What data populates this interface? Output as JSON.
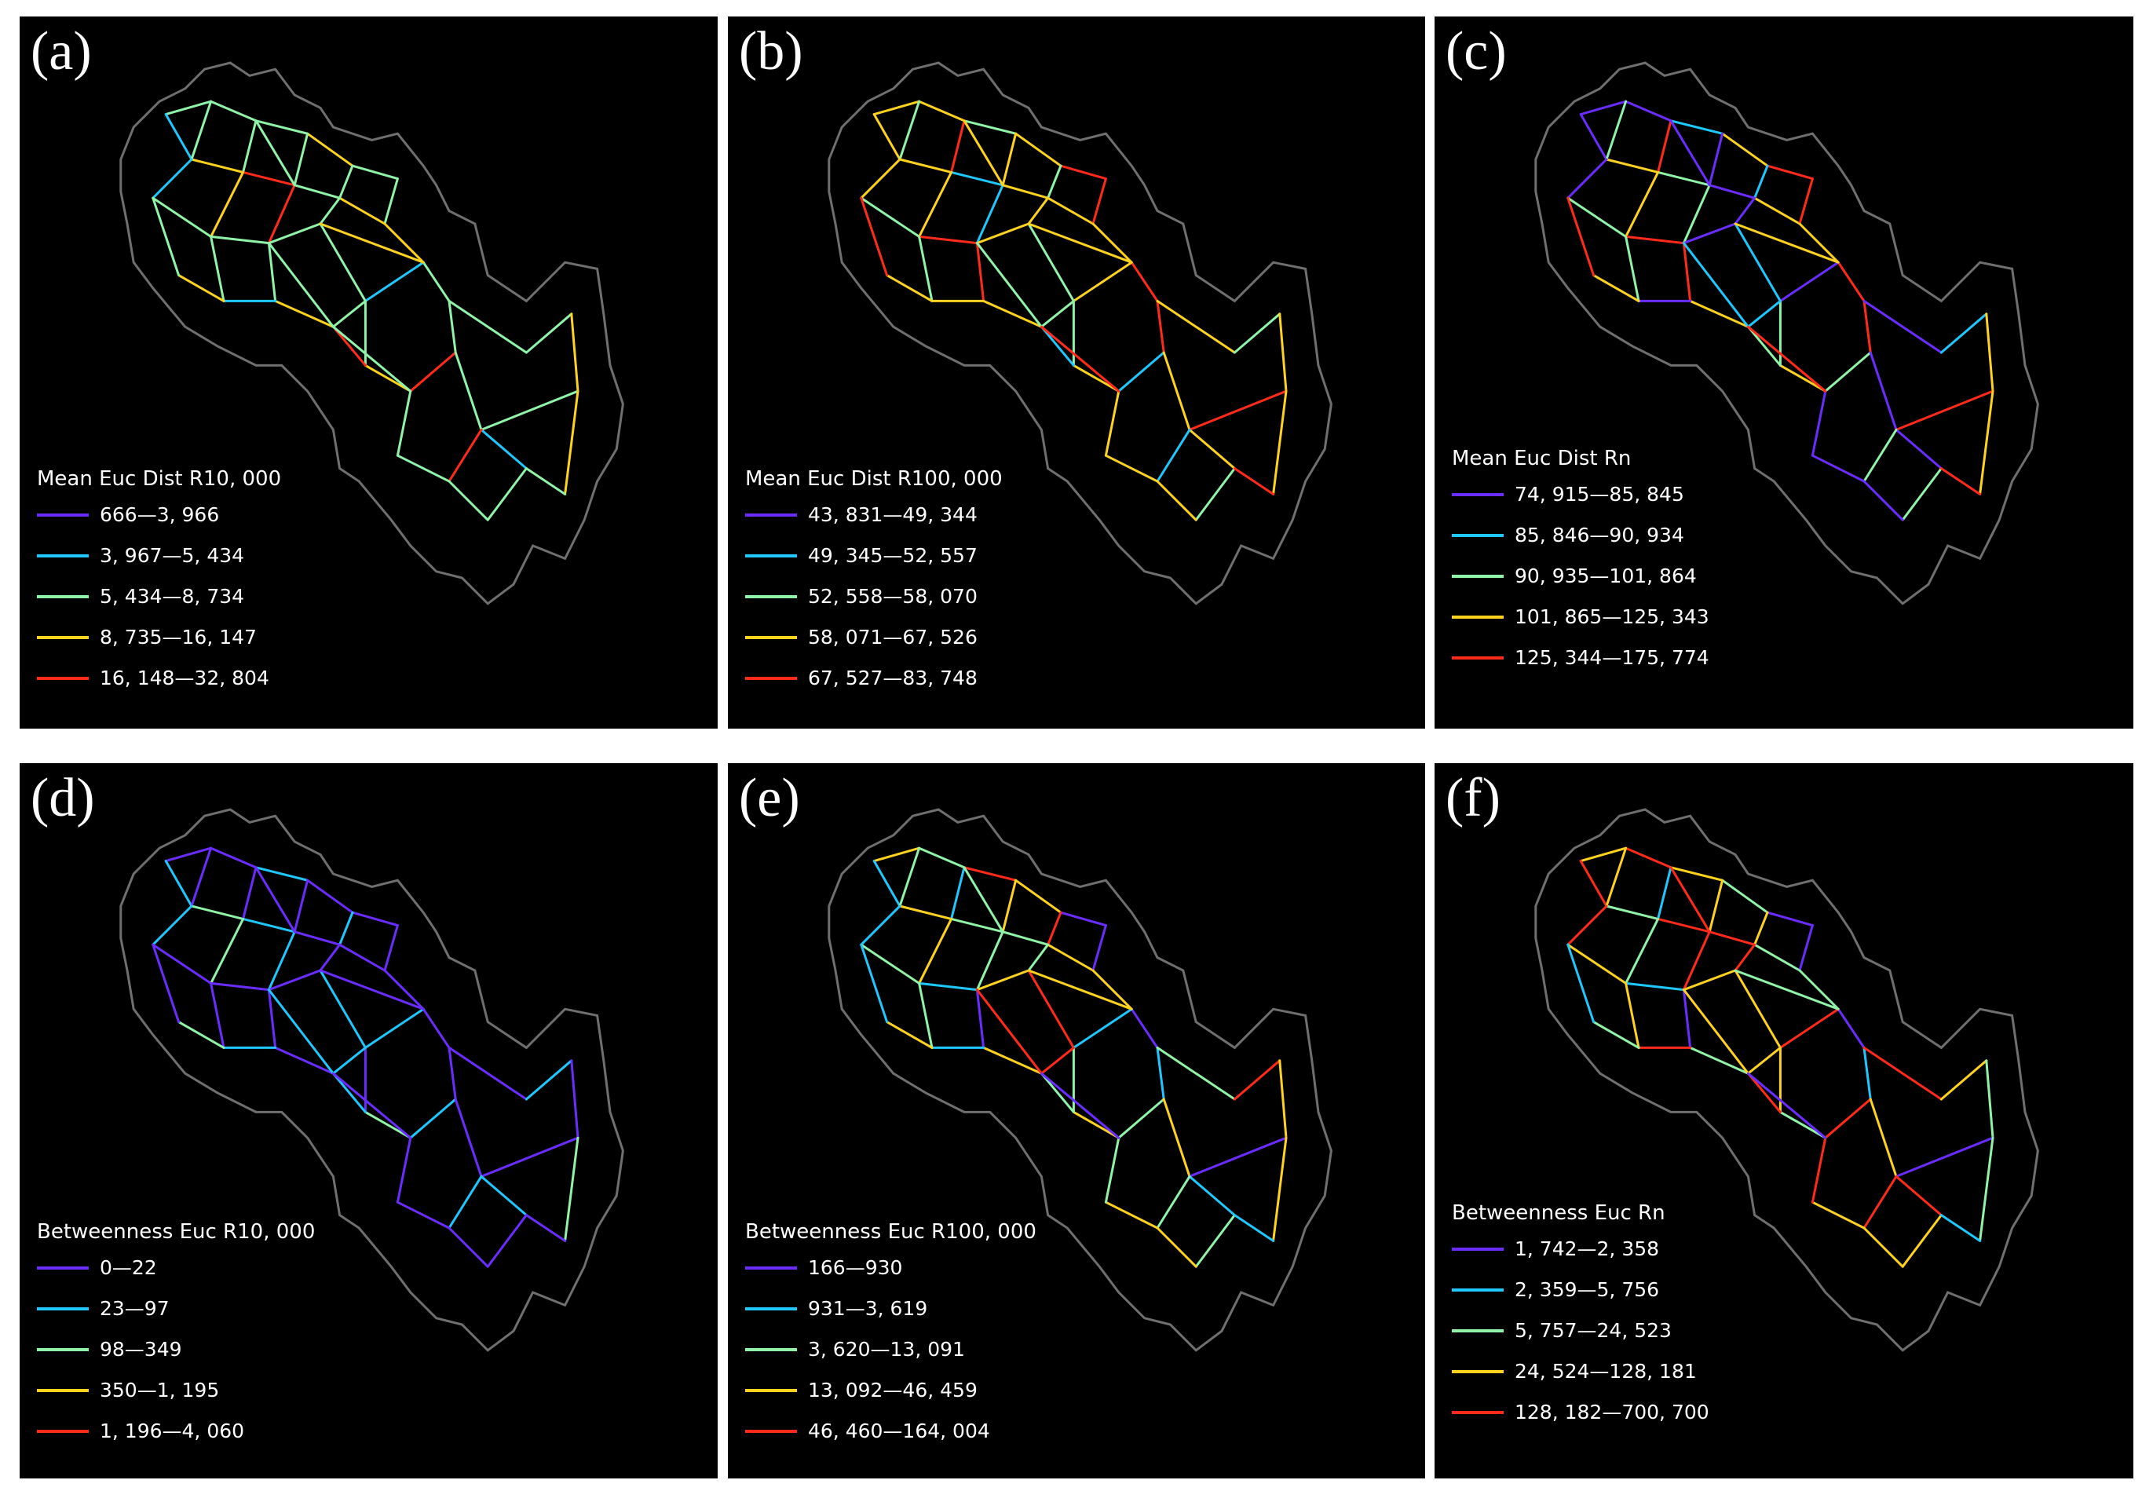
{
  "panels": [
    {
      "letter": "(a)",
      "legend_title": "Mean Euc Dist R10, 000",
      "classes": [
        {
          "label": "666—3, 966",
          "color": "#6a2cff"
        },
        {
          "label": "3, 967—5, 434",
          "color": "#1ec8ff"
        },
        {
          "label": "5, 434—8, 734",
          "color": "#8ff3a8"
        },
        {
          "label": "8, 735—16, 147",
          "color": "#ffd21e"
        },
        {
          "label": "16, 148—32, 804",
          "color": "#ff2a1a"
        }
      ],
      "dominant": [
        2,
        2,
        2,
        3,
        2,
        1,
        2,
        3,
        2,
        4
      ]
    },
    {
      "letter": "(b)",
      "legend_title": "Mean Euc Dist R100, 000",
      "classes": [
        {
          "label": "43, 831—49, 344",
          "color": "#6a2cff"
        },
        {
          "label": "49, 345—52, 557",
          "color": "#1ec8ff"
        },
        {
          "label": "52, 558—58, 070",
          "color": "#8ff3a8"
        },
        {
          "label": "58, 071—67, 526",
          "color": "#ffd21e"
        },
        {
          "label": "67, 527—83, 748",
          "color": "#ff2a1a"
        }
      ],
      "dominant": [
        3,
        3,
        2,
        3,
        4,
        3,
        2,
        3,
        4,
        1
      ]
    },
    {
      "letter": "(c)",
      "legend_title": "Mean Euc Dist Rn",
      "classes": [
        {
          "label": "74, 915—85, 845",
          "color": "#6a2cff"
        },
        {
          "label": "85, 846—90, 934",
          "color": "#1ec8ff"
        },
        {
          "label": "90, 935—101, 864",
          "color": "#8ff3a8"
        },
        {
          "label": "101, 865—125, 343",
          "color": "#ffd21e"
        },
        {
          "label": "125, 344—175, 774",
          "color": "#ff2a1a"
        }
      ],
      "dominant": [
        0,
        0,
        1,
        3,
        4,
        0,
        2,
        3,
        4,
        2
      ]
    },
    {
      "letter": "(d)",
      "legend_title": "Betweenness Euc R10, 000",
      "classes": [
        {
          "label": "0—22",
          "color": "#6a2cff"
        },
        {
          "label": "23—97",
          "color": "#1ec8ff"
        },
        {
          "label": "98—349",
          "color": "#8ff3a8"
        },
        {
          "label": "350—1, 195",
          "color": "#ffd21e"
        },
        {
          "label": "1, 196—4, 060",
          "color": "#ff2a1a"
        }
      ],
      "dominant": [
        0,
        0,
        1,
        0,
        0,
        1,
        0,
        2,
        0,
        1
      ]
    },
    {
      "letter": "(e)",
      "legend_title": "Betweenness Euc R100, 000",
      "classes": [
        {
          "label": "166—930",
          "color": "#6a2cff"
        },
        {
          "label": "931—3, 619",
          "color": "#1ec8ff"
        },
        {
          "label": "3, 620—13, 091",
          "color": "#8ff3a8"
        },
        {
          "label": "13, 092—46, 459",
          "color": "#ffd21e"
        },
        {
          "label": "46, 460—164, 004",
          "color": "#ff2a1a"
        }
      ],
      "dominant": [
        3,
        2,
        4,
        3,
        0,
        1,
        2,
        3,
        1,
        2
      ]
    },
    {
      "letter": "(f)",
      "legend_title": "Betweenness Euc Rn",
      "classes": [
        {
          "label": "1, 742—2, 358",
          "color": "#6a2cff"
        },
        {
          "label": "2, 359—5, 756",
          "color": "#1ec8ff"
        },
        {
          "label": "5, 757—24, 523",
          "color": "#8ff3a8"
        },
        {
          "label": "24, 524—128, 181",
          "color": "#ffd21e"
        },
        {
          "label": "128, 182—700, 700",
          "color": "#ff2a1a"
        }
      ],
      "dominant": [
        3,
        4,
        3,
        2,
        0,
        4,
        3,
        2,
        1,
        4
      ]
    }
  ]
}
